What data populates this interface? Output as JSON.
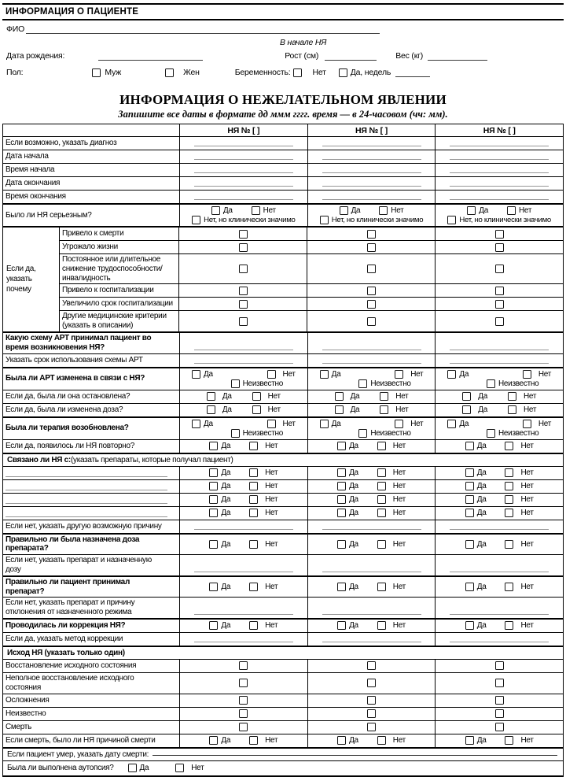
{
  "patient": {
    "section_title": "ИНФОРМАЦИЯ О ПАЦИЕНТЕ",
    "fio_label": "ФИО",
    "onset_label": "В начале НЯ",
    "birth_date_label": "Дата рождения:",
    "height_label": "Рост (см)",
    "weight_label": "Вес (кг)",
    "sex_label": "Пол:",
    "sex_male": "Муж",
    "sex_female": "Жен",
    "pregnancy_label": "Беременность:",
    "pregnancy_no": "Нет",
    "pregnancy_yes": "Да,  недель"
  },
  "ae_title": "ИНФОРМАЦИЯ О НЕЖЕЛАТЕЛЬНОМ ЯВЛЕНИИ",
  "ae_subtitle": "Запишите все даты в формате дд ммм гггг. время — в 24-часовом (чч: мм).",
  "table": {
    "header": "НЯ № [    ]",
    "opts": {
      "yes": "Да",
      "no": "Нет",
      "unknown": "Неизвестно",
      "no_sig": "Нет, но клинически значимо"
    },
    "top_rows": [
      {
        "label": "Если возможно, указать диагноз",
        "type": "blank"
      },
      {
        "label": "Дата начала",
        "type": "blank"
      },
      {
        "label": "Время начала",
        "type": "blank"
      },
      {
        "label": "Дата окончания",
        "type": "blank"
      },
      {
        "label": "Время окончания",
        "type": "blank"
      },
      {
        "label": "Было ли НЯ серьезным?",
        "type": "serious",
        "thick": true
      }
    ],
    "reason": {
      "side_lines": [
        "Если да,",
        "указать",
        "почему"
      ],
      "items": [
        {
          "label": "Привело к смерти"
        },
        {
          "label": "Угрожало жизни"
        },
        {
          "label": "Постоянное или длительное снижение трудоспособности/ инвалидность"
        },
        {
          "label": "Привело к госпитализации"
        },
        {
          "label": "Увеличило срок госпитализации"
        },
        {
          "label": "Другие медицинские критерии (указать в описании)"
        }
      ]
    },
    "mid_rows": [
      {
        "label": "Какую схему АРТ принимал пациент во время возникновения НЯ?",
        "type": "blank",
        "bold": true,
        "thick": true
      },
      {
        "label": "Указать срок использования схемы АРТ",
        "type": "blank"
      },
      {
        "label": "Была ли АРТ изменена в связи с НЯ?",
        "type": "unknown",
        "bold": true,
        "thick": true
      },
      {
        "label": "Если да, была ли она остановлена?",
        "type": "yesno_wide"
      },
      {
        "label": "Если да, была ли изменена доза?",
        "type": "yesno_wide"
      },
      {
        "label": "Была ли терапия возобновлена?",
        "type": "unknown",
        "bold": true,
        "thick": true
      },
      {
        "label": "Если да, появилось ли НЯ повторно?",
        "type": "yesno"
      }
    ],
    "related_header": {
      "bold": "Связано ли НЯ с:",
      "rest": " (указать препараты, которые получал пациент)"
    },
    "drug_rows": [
      {
        "type": "drug"
      },
      {
        "type": "drug"
      },
      {
        "type": "drug"
      },
      {
        "type": "drug"
      }
    ],
    "lower_rows": [
      {
        "label": "Если нет, указать другую возможную причину",
        "type": "blank"
      },
      {
        "label": "Правильно ли была назначена доза препарата?",
        "type": "yesno",
        "bold": true,
        "thick": true
      },
      {
        "label": "Если нет, указать препарат и назначенную дозу",
        "type": "blank"
      },
      {
        "label": "Правильно ли пациент принимал препарат?",
        "type": "yesno",
        "bold": true,
        "thick": true
      },
      {
        "label": "Если нет, указать препарат и причину отклонения от назначенного режима",
        "type": "blank"
      },
      {
        "label": "Проводилась ли  коррекция НЯ?",
        "type": "yesno",
        "bold": true,
        "thick": true
      },
      {
        "label": "Если да, указать метод коррекции",
        "type": "blank"
      }
    ],
    "outcome_header": "Исход НЯ (указать только один)",
    "outcome_rows": [
      {
        "label": "Восстановление исходного состояния",
        "type": "single"
      },
      {
        "label": "Неполное восстановление исходного состояния",
        "type": "single"
      },
      {
        "label": "Осложнения",
        "type": "single"
      },
      {
        "label": "Неизвестно",
        "type": "single"
      },
      {
        "label": "Смерть",
        "type": "single"
      },
      {
        "label": "Если смерть, было ли НЯ причиной смерти",
        "type": "yesno"
      }
    ],
    "death_date_label": "Если пациент умер, указать дату смерти:",
    "autopsy_label": "Была ли выполнена аутопсия?"
  }
}
